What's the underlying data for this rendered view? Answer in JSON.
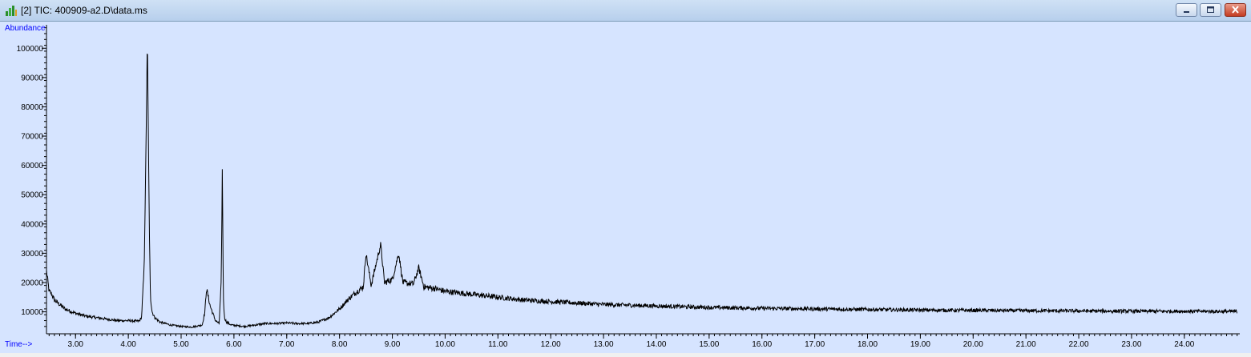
{
  "window": {
    "title": "[2] TIC: 400909-a2.D\\data.ms",
    "buttons": [
      "minimize-icon",
      "maximize-icon",
      "close-icon"
    ]
  },
  "colors": {
    "plot_background": "#d6e4ff",
    "trace": "#000000",
    "axis_label": "#0000ff",
    "title_bar": "#c4d9f1",
    "close_button": "#c94a2f"
  },
  "chart_data": {
    "type": "line",
    "xlabel": "Time-->",
    "ylabel": "Abundance",
    "xlim": [
      2.45,
      25.05
    ],
    "ylim": [
      2500,
      108000
    ],
    "grid": false,
    "legend": "none",
    "x_ticks": [
      3,
      4,
      5,
      6,
      7,
      8,
      9,
      10,
      11,
      12,
      13,
      14,
      15,
      16,
      17,
      18,
      19,
      20,
      21,
      22,
      23,
      24
    ],
    "x_tick_labels": [
      "3.00",
      "4.00",
      "5.00",
      "6.00",
      "7.00",
      "8.00",
      "9.00",
      "10.00",
      "11.00",
      "12.00",
      "13.00",
      "14.00",
      "15.00",
      "16.00",
      "17.00",
      "18.00",
      "19.00",
      "20.00",
      "21.00",
      "22.00",
      "23.00",
      "24.00"
    ],
    "y_ticks": [
      10000,
      20000,
      30000,
      40000,
      50000,
      60000,
      70000,
      80000,
      90000,
      100000
    ],
    "y_tick_labels": [
      "10000",
      "20000",
      "30000",
      "40000",
      "50000",
      "60000",
      "70000",
      "80000",
      "90000",
      "100000"
    ],
    "series": [
      {
        "x": [
          2.45,
          2.5,
          2.55,
          2.6,
          2.7,
          2.8,
          3.0,
          3.2,
          3.4,
          3.6,
          3.8,
          4.0,
          4.2,
          4.25,
          4.3,
          4.33,
          4.36,
          4.38,
          4.4,
          4.42,
          4.45,
          4.5,
          4.6,
          4.8,
          5.0,
          5.2,
          5.4,
          5.45,
          5.48,
          5.55,
          5.65,
          5.72,
          5.76,
          5.78,
          5.8,
          5.82,
          5.86,
          5.95,
          6.2,
          6.4,
          6.6,
          6.8,
          7.0,
          7.2,
          7.4,
          7.6,
          7.8,
          8.0,
          8.15,
          8.3,
          8.45,
          8.5,
          8.6,
          8.7,
          8.78,
          8.85,
          9.0,
          9.12,
          9.2,
          9.4,
          9.5,
          9.6,
          9.8,
          10.0,
          10.5,
          11.0,
          11.5,
          12.0,
          12.5,
          13.0,
          14.0,
          15.0,
          16.0,
          17.0,
          18.0,
          19.0,
          20.0,
          21.0,
          22.0,
          23.0,
          24.0,
          25.0
        ],
        "y": [
          24000,
          17000,
          16000,
          14000,
          12500,
          11000,
          9500,
          8500,
          8000,
          7500,
          7000,
          7000,
          6800,
          8000,
          25000,
          60000,
          103000,
          70000,
          35000,
          15000,
          10000,
          8000,
          6500,
          5500,
          5000,
          4800,
          5500,
          10000,
          18000,
          12000,
          7000,
          6000,
          20000,
          59000,
          15000,
          8000,
          6500,
          5500,
          5000,
          5500,
          6000,
          6000,
          6200,
          6000,
          6000,
          6500,
          8000,
          11000,
          14000,
          16500,
          18500,
          30000,
          19000,
          27000,
          33000,
          20000,
          21000,
          30000,
          20000,
          19500,
          25000,
          18500,
          18000,
          17000,
          16000,
          15000,
          14000,
          13500,
          13000,
          12500,
          12000,
          11500,
          11200,
          11000,
          10800,
          10600,
          10500,
          10400,
          10300,
          10200,
          10200,
          10100
        ]
      }
    ]
  }
}
